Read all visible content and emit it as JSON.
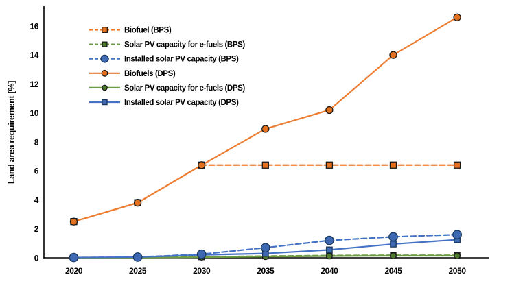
{
  "chart_data": {
    "type": "line",
    "title": "",
    "xlabel": "",
    "ylabel": "Land area requirement [%]",
    "x": [
      "2020",
      "2025",
      "2030",
      "2035",
      "2040",
      "2045",
      "2050"
    ],
    "yticks": [
      "0",
      "2",
      "4",
      "6",
      "8",
      "10",
      "12",
      "14",
      "16"
    ],
    "ylim": [
      0,
      17.3
    ],
    "grid": false,
    "legend_position": "top-left",
    "axis_color": "#000000",
    "series": [
      {
        "name": "Biofuel (BPS)",
        "values": [
          2.5,
          3.8,
          6.4,
          6.4,
          6.4,
          6.4,
          6.4
        ],
        "color": "#ED7D31",
        "marker_fill": "#E2701F",
        "marker_edge": "#1a1a1a",
        "dash": true,
        "marker": "square"
      },
      {
        "name": "Solar PV capacity for e-fuels (BPS)",
        "values": [
          0,
          0.02,
          0.06,
          0.12,
          0.16,
          0.18,
          0.18
        ],
        "color": "#6D9C45",
        "marker_fill": "#4E7A2D",
        "marker_edge": "#1a1a1a",
        "dash": true,
        "marker": "square"
      },
      {
        "name": "Installed solar PV capacity (BPS)",
        "values": [
          0.02,
          0.05,
          0.25,
          0.7,
          1.2,
          1.45,
          1.6
        ],
        "color": "#4472C4",
        "marker_fill": "#3E68B2",
        "marker_edge": "#17375E",
        "dash": true,
        "marker": "circle"
      },
      {
        "name": "Biofuels (DPS)",
        "values": [
          2.5,
          3.8,
          6.4,
          8.9,
          10.2,
          14,
          16.6
        ],
        "color": "#ED7D31",
        "marker_fill": "#E2701F",
        "marker_edge": "#1a1a1a",
        "dash": false,
        "marker": "circle"
      },
      {
        "name": "Solar PV capacity for e-fuels (DPS)",
        "values": [
          0,
          0.01,
          0.04,
          0.08,
          0.12,
          0.14,
          0.14
        ],
        "color": "#6D9C45",
        "marker_fill": "#4E7A2D",
        "marker_edge": "#1a1a1a",
        "dash": false,
        "marker": "circle"
      },
      {
        "name": "Installed solar PV capacity (DPS)",
        "values": [
          0.02,
          0.05,
          0.2,
          0.3,
          0.55,
          0.95,
          1.25
        ],
        "color": "#4472C4",
        "marker_fill": "#3E68B2",
        "marker_edge": "#17375E",
        "dash": false,
        "marker": "square"
      }
    ]
  }
}
